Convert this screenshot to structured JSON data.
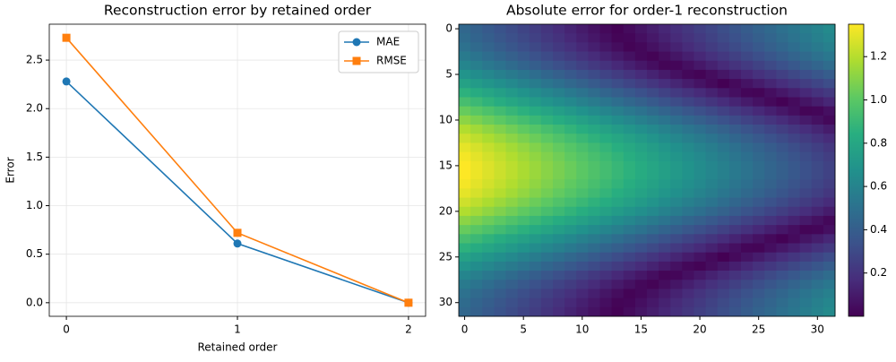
{
  "chart_data": [
    {
      "type": "line",
      "title": "Reconstruction error by retained order",
      "xlabel": "Retained order",
      "ylabel": "Error",
      "x": [
        0,
        1,
        2
      ],
      "series": [
        {
          "name": "MAE",
          "color": "#1f77b4",
          "marker": "circle",
          "values": [
            2.28,
            0.61,
            0.0
          ]
        },
        {
          "name": "RMSE",
          "color": "#ff7f0e",
          "marker": "square",
          "values": [
            2.73,
            0.72,
            0.0
          ]
        }
      ],
      "xlim": [
        -0.1,
        2.1
      ],
      "xticks": [
        0,
        1,
        2
      ],
      "ylim": [
        -0.14,
        2.87
      ],
      "yticks": [
        {
          "value": 0,
          "label": "0.0"
        },
        0.5,
        {
          "value": 1,
          "label": "1.0"
        },
        1.5,
        {
          "value": 2,
          "label": "2.0"
        },
        2.5
      ],
      "grid": true,
      "legend": "upper right"
    },
    {
      "type": "heatmap",
      "title": "Absolute error for order-1 reconstruction",
      "colormap": "viridis",
      "xlim": [
        -0.5,
        31.5
      ],
      "ylim": [
        -0.5,
        31.5
      ],
      "y_inverted": true,
      "xticks": [
        0,
        5,
        10,
        15,
        20,
        25,
        30
      ],
      "yticks": [
        0,
        5,
        10,
        15,
        20,
        25,
        30
      ],
      "clim": [
        0,
        1.35
      ],
      "cticks": [
        0.2,
        0.4,
        0.6,
        0.8,
        {
          "value": 1,
          "label": "1.0"
        },
        1.2
      ],
      "z": [
        [
          0.45,
          0.415,
          0.38,
          0.345,
          0.31,
          0.275,
          0.24,
          0.205,
          0.17,
          0.135,
          0.1,
          0.065,
          0.03,
          0.005,
          0.04,
          0.075,
          0.11,
          0.145,
          0.18,
          0.215,
          0.25,
          0.285,
          0.32,
          0.355,
          0.39,
          0.425,
          0.46,
          0.495,
          0.53,
          0.565,
          0.6,
          0.635
        ],
        [
          0.47,
          0.435,
          0.4,
          0.365,
          0.33,
          0.295,
          0.26,
          0.225,
          0.19,
          0.155,
          0.12,
          0.085,
          0.05,
          0.015,
          0.02,
          0.055,
          0.09,
          0.125,
          0.16,
          0.195,
          0.23,
          0.265,
          0.3,
          0.335,
          0.37,
          0.405,
          0.44,
          0.475,
          0.51,
          0.545,
          0.58,
          0.615
        ],
        [
          0.5,
          0.465,
          0.43,
          0.395,
          0.36,
          0.325,
          0.29,
          0.255,
          0.22,
          0.185,
          0.15,
          0.115,
          0.08,
          0.045,
          0.01,
          0.025,
          0.06,
          0.095,
          0.13,
          0.165,
          0.2,
          0.235,
          0.27,
          0.305,
          0.34,
          0.375,
          0.41,
          0.445,
          0.48,
          0.515,
          0.55,
          0.585
        ],
        [
          0.55,
          0.515,
          0.48,
          0.445,
          0.41,
          0.375,
          0.34,
          0.305,
          0.27,
          0.235,
          0.2,
          0.165,
          0.13,
          0.095,
          0.06,
          0.025,
          0.01,
          0.045,
          0.08,
          0.115,
          0.15,
          0.185,
          0.22,
          0.255,
          0.29,
          0.325,
          0.36,
          0.395,
          0.43,
          0.465,
          0.5,
          0.535
        ],
        [
          0.61,
          0.575,
          0.54,
          0.505,
          0.47,
          0.435,
          0.4,
          0.365,
          0.33,
          0.295,
          0.26,
          0.225,
          0.19,
          0.155,
          0.12,
          0.085,
          0.05,
          0.015,
          0.02,
          0.055,
          0.09,
          0.125,
          0.16,
          0.195,
          0.23,
          0.265,
          0.3,
          0.335,
          0.37,
          0.405,
          0.44,
          0.475
        ],
        [
          0.69,
          0.655,
          0.62,
          0.585,
          0.55,
          0.515,
          0.48,
          0.445,
          0.41,
          0.375,
          0.34,
          0.305,
          0.27,
          0.235,
          0.2,
          0.165,
          0.13,
          0.095,
          0.06,
          0.025,
          0.01,
          0.045,
          0.08,
          0.115,
          0.15,
          0.185,
          0.22,
          0.255,
          0.29,
          0.325,
          0.36,
          0.395
        ],
        [
          0.77,
          0.735,
          0.7,
          0.665,
          0.63,
          0.595,
          0.56,
          0.525,
          0.49,
          0.455,
          0.42,
          0.385,
          0.35,
          0.315,
          0.28,
          0.245,
          0.21,
          0.175,
          0.14,
          0.105,
          0.07,
          0.035,
          0,
          0.035,
          0.07,
          0.105,
          0.14,
          0.175,
          0.21,
          0.245,
          0.28,
          0.315
        ],
        [
          0.86,
          0.825,
          0.79,
          0.755,
          0.72,
          0.685,
          0.65,
          0.615,
          0.58,
          0.545,
          0.51,
          0.475,
          0.44,
          0.405,
          0.37,
          0.335,
          0.3,
          0.265,
          0.23,
          0.195,
          0.16,
          0.125,
          0.09,
          0.055,
          0.02,
          0.015,
          0.05,
          0.085,
          0.12,
          0.155,
          0.19,
          0.225
        ],
        [
          0.94,
          0.905,
          0.87,
          0.835,
          0.8,
          0.765,
          0.73,
          0.695,
          0.66,
          0.625,
          0.59,
          0.555,
          0.52,
          0.485,
          0.45,
          0.415,
          0.38,
          0.345,
          0.31,
          0.275,
          0.24,
          0.205,
          0.17,
          0.135,
          0.1,
          0.065,
          0.03,
          0.005,
          0.04,
          0.075,
          0.11,
          0.145
        ],
        [
          1.03,
          0.995,
          0.96,
          0.925,
          0.89,
          0.855,
          0.82,
          0.785,
          0.75,
          0.715,
          0.68,
          0.645,
          0.61,
          0.575,
          0.54,
          0.505,
          0.47,
          0.435,
          0.4,
          0.365,
          0.33,
          0.295,
          0.26,
          0.225,
          0.19,
          0.155,
          0.12,
          0.085,
          0.05,
          0.015,
          0.02,
          0.055
        ],
        [
          1.11,
          1.075,
          1.04,
          1.005,
          0.97,
          0.935,
          0.9,
          0.865,
          0.83,
          0.795,
          0.76,
          0.725,
          0.69,
          0.655,
          0.62,
          0.585,
          0.55,
          0.515,
          0.48,
          0.445,
          0.41,
          0.375,
          0.34,
          0.305,
          0.27,
          0.235,
          0.2,
          0.165,
          0.13,
          0.095,
          0.06,
          0.025
        ],
        [
          1.19,
          1.155,
          1.12,
          1.085,
          1.05,
          1.015,
          0.98,
          0.945,
          0.91,
          0.875,
          0.84,
          0.805,
          0.77,
          0.735,
          0.7,
          0.665,
          0.63,
          0.595,
          0.56,
          0.525,
          0.49,
          0.455,
          0.42,
          0.385,
          0.35,
          0.315,
          0.28,
          0.245,
          0.21,
          0.175,
          0.14,
          0.105
        ],
        [
          1.25,
          1.215,
          1.18,
          1.145,
          1.11,
          1.075,
          1.04,
          1.005,
          0.97,
          0.935,
          0.9,
          0.865,
          0.83,
          0.795,
          0.76,
          0.725,
          0.69,
          0.655,
          0.62,
          0.585,
          0.55,
          0.515,
          0.48,
          0.445,
          0.41,
          0.375,
          0.34,
          0.305,
          0.27,
          0.235,
          0.2,
          0.165
        ],
        [
          1.3,
          1.265,
          1.23,
          1.195,
          1.16,
          1.125,
          1.09,
          1.055,
          1.02,
          0.985,
          0.95,
          0.915,
          0.88,
          0.845,
          0.81,
          0.775,
          0.74,
          0.705,
          0.67,
          0.635,
          0.6,
          0.565,
          0.53,
          0.495,
          0.46,
          0.425,
          0.39,
          0.355,
          0.32,
          0.285,
          0.25,
          0.215
        ],
        [
          1.33,
          1.295,
          1.26,
          1.225,
          1.19,
          1.155,
          1.12,
          1.085,
          1.05,
          1.015,
          0.98,
          0.945,
          0.91,
          0.875,
          0.84,
          0.805,
          0.77,
          0.735,
          0.7,
          0.665,
          0.63,
          0.595,
          0.56,
          0.525,
          0.49,
          0.455,
          0.42,
          0.385,
          0.35,
          0.315,
          0.28,
          0.245
        ],
        [
          1.35,
          1.315,
          1.28,
          1.245,
          1.21,
          1.175,
          1.14,
          1.105,
          1.07,
          1.035,
          1,
          0.965,
          0.93,
          0.895,
          0.86,
          0.825,
          0.79,
          0.755,
          0.72,
          0.685,
          0.65,
          0.615,
          0.58,
          0.545,
          0.51,
          0.475,
          0.44,
          0.405,
          0.37,
          0.335,
          0.3,
          0.265
        ],
        [
          1.35,
          1.315,
          1.28,
          1.245,
          1.21,
          1.175,
          1.14,
          1.105,
          1.07,
          1.035,
          1,
          0.965,
          0.93,
          0.895,
          0.86,
          0.825,
          0.79,
          0.755,
          0.72,
          0.685,
          0.65,
          0.615,
          0.58,
          0.545,
          0.51,
          0.475,
          0.44,
          0.405,
          0.37,
          0.335,
          0.3,
          0.265
        ],
        [
          1.33,
          1.295,
          1.26,
          1.225,
          1.19,
          1.155,
          1.12,
          1.085,
          1.05,
          1.015,
          0.98,
          0.945,
          0.91,
          0.875,
          0.84,
          0.805,
          0.77,
          0.735,
          0.7,
          0.665,
          0.63,
          0.595,
          0.56,
          0.525,
          0.49,
          0.455,
          0.42,
          0.385,
          0.35,
          0.315,
          0.28,
          0.245
        ],
        [
          1.3,
          1.265,
          1.23,
          1.195,
          1.16,
          1.125,
          1.09,
          1.055,
          1.02,
          0.985,
          0.95,
          0.915,
          0.88,
          0.845,
          0.81,
          0.775,
          0.74,
          0.705,
          0.67,
          0.635,
          0.6,
          0.565,
          0.53,
          0.495,
          0.46,
          0.425,
          0.39,
          0.355,
          0.32,
          0.285,
          0.25,
          0.215
        ],
        [
          1.25,
          1.215,
          1.18,
          1.145,
          1.11,
          1.075,
          1.04,
          1.005,
          0.97,
          0.935,
          0.9,
          0.865,
          0.83,
          0.795,
          0.76,
          0.725,
          0.69,
          0.655,
          0.62,
          0.585,
          0.55,
          0.515,
          0.48,
          0.445,
          0.41,
          0.375,
          0.34,
          0.305,
          0.27,
          0.235,
          0.2,
          0.165
        ],
        [
          1.19,
          1.155,
          1.12,
          1.085,
          1.05,
          1.015,
          0.98,
          0.945,
          0.91,
          0.875,
          0.84,
          0.805,
          0.77,
          0.735,
          0.7,
          0.665,
          0.63,
          0.595,
          0.56,
          0.525,
          0.49,
          0.455,
          0.42,
          0.385,
          0.35,
          0.315,
          0.28,
          0.245,
          0.21,
          0.175,
          0.14,
          0.105
        ],
        [
          1.11,
          1.075,
          1.04,
          1.005,
          0.97,
          0.935,
          0.9,
          0.865,
          0.83,
          0.795,
          0.76,
          0.725,
          0.69,
          0.655,
          0.62,
          0.585,
          0.55,
          0.515,
          0.48,
          0.445,
          0.41,
          0.375,
          0.34,
          0.305,
          0.27,
          0.235,
          0.2,
          0.165,
          0.13,
          0.095,
          0.06,
          0.025
        ],
        [
          1.03,
          0.995,
          0.96,
          0.925,
          0.89,
          0.855,
          0.82,
          0.785,
          0.75,
          0.715,
          0.68,
          0.645,
          0.61,
          0.575,
          0.54,
          0.505,
          0.47,
          0.435,
          0.4,
          0.365,
          0.33,
          0.295,
          0.26,
          0.225,
          0.19,
          0.155,
          0.12,
          0.085,
          0.05,
          0.015,
          0.02,
          0.055
        ],
        [
          0.94,
          0.905,
          0.87,
          0.835,
          0.8,
          0.765,
          0.73,
          0.695,
          0.66,
          0.625,
          0.59,
          0.555,
          0.52,
          0.485,
          0.45,
          0.415,
          0.38,
          0.345,
          0.31,
          0.275,
          0.24,
          0.205,
          0.17,
          0.135,
          0.1,
          0.065,
          0.03,
          0.005,
          0.04,
          0.075,
          0.11,
          0.145
        ],
        [
          0.86,
          0.825,
          0.79,
          0.755,
          0.72,
          0.685,
          0.65,
          0.615,
          0.58,
          0.545,
          0.51,
          0.475,
          0.44,
          0.405,
          0.37,
          0.335,
          0.3,
          0.265,
          0.23,
          0.195,
          0.16,
          0.125,
          0.09,
          0.055,
          0.02,
          0.015,
          0.05,
          0.085,
          0.12,
          0.155,
          0.19,
          0.225
        ],
        [
          0.77,
          0.735,
          0.7,
          0.665,
          0.63,
          0.595,
          0.56,
          0.525,
          0.49,
          0.455,
          0.42,
          0.385,
          0.35,
          0.315,
          0.28,
          0.245,
          0.21,
          0.175,
          0.14,
          0.105,
          0.07,
          0.035,
          0,
          0.035,
          0.07,
          0.105,
          0.14,
          0.175,
          0.21,
          0.245,
          0.28,
          0.315
        ],
        [
          0.69,
          0.655,
          0.62,
          0.585,
          0.55,
          0.515,
          0.48,
          0.445,
          0.41,
          0.375,
          0.34,
          0.305,
          0.27,
          0.235,
          0.2,
          0.165,
          0.13,
          0.095,
          0.06,
          0.025,
          0.01,
          0.045,
          0.08,
          0.115,
          0.15,
          0.185,
          0.22,
          0.255,
          0.29,
          0.325,
          0.36,
          0.395
        ],
        [
          0.61,
          0.575,
          0.54,
          0.505,
          0.47,
          0.435,
          0.4,
          0.365,
          0.33,
          0.295,
          0.26,
          0.225,
          0.19,
          0.155,
          0.12,
          0.085,
          0.05,
          0.015,
          0.02,
          0.055,
          0.09,
          0.125,
          0.16,
          0.195,
          0.23,
          0.265,
          0.3,
          0.335,
          0.37,
          0.405,
          0.44,
          0.475
        ],
        [
          0.55,
          0.515,
          0.48,
          0.445,
          0.41,
          0.375,
          0.34,
          0.305,
          0.27,
          0.235,
          0.2,
          0.165,
          0.13,
          0.095,
          0.06,
          0.025,
          0.01,
          0.045,
          0.08,
          0.115,
          0.15,
          0.185,
          0.22,
          0.255,
          0.29,
          0.325,
          0.36,
          0.395,
          0.43,
          0.465,
          0.5,
          0.535
        ],
        [
          0.5,
          0.465,
          0.43,
          0.395,
          0.36,
          0.325,
          0.29,
          0.255,
          0.22,
          0.185,
          0.15,
          0.115,
          0.08,
          0.045,
          0.01,
          0.025,
          0.06,
          0.095,
          0.13,
          0.165,
          0.2,
          0.235,
          0.27,
          0.305,
          0.34,
          0.375,
          0.41,
          0.445,
          0.48,
          0.515,
          0.55,
          0.585
        ],
        [
          0.47,
          0.435,
          0.4,
          0.365,
          0.33,
          0.295,
          0.26,
          0.225,
          0.19,
          0.155,
          0.12,
          0.085,
          0.05,
          0.015,
          0.02,
          0.055,
          0.09,
          0.125,
          0.16,
          0.195,
          0.23,
          0.265,
          0.3,
          0.335,
          0.37,
          0.405,
          0.44,
          0.475,
          0.51,
          0.545,
          0.58,
          0.615
        ],
        [
          0.45,
          0.415,
          0.38,
          0.345,
          0.31,
          0.275,
          0.24,
          0.205,
          0.17,
          0.135,
          0.1,
          0.065,
          0.03,
          0.005,
          0.04,
          0.075,
          0.11,
          0.145,
          0.18,
          0.215,
          0.25,
          0.285,
          0.32,
          0.355,
          0.39,
          0.425,
          0.46,
          0.495,
          0.53,
          0.565,
          0.6,
          0.635
        ]
      ]
    }
  ]
}
